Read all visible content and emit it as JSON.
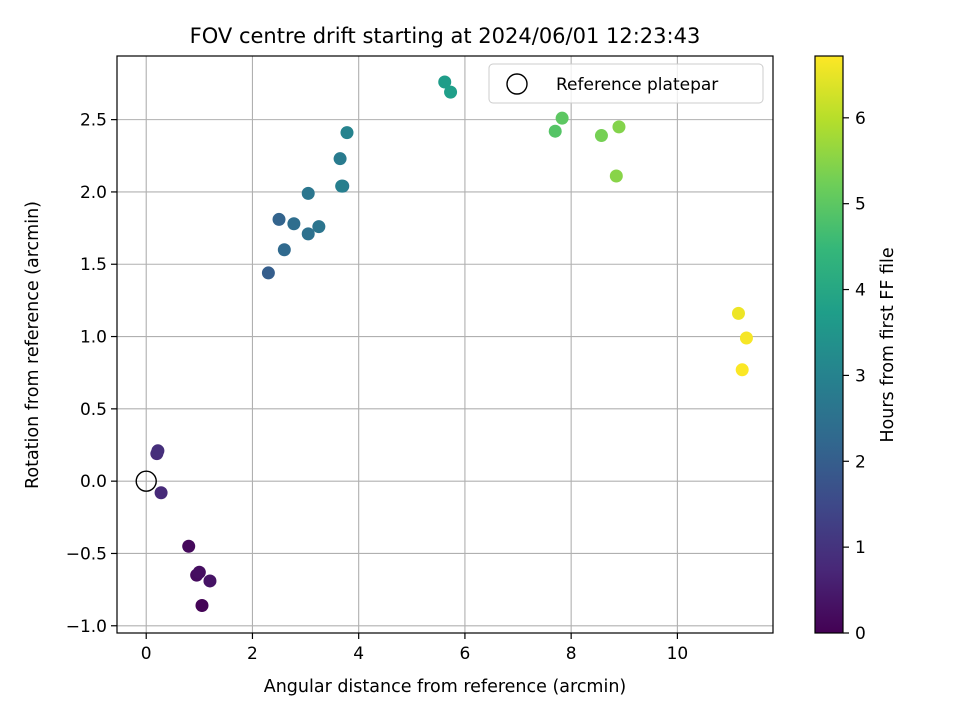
{
  "chart_data": {
    "type": "scatter",
    "title": "FOV centre drift starting at 2024/06/01 12:23:43",
    "xlabel": "Angular distance from reference (arcmin)",
    "ylabel": "Rotation from reference (arcmin)",
    "xlim": [
      -0.55,
      11.8
    ],
    "ylim": [
      -1.05,
      2.94
    ],
    "xticks": [
      0,
      2,
      4,
      6,
      8,
      10
    ],
    "yticks": [
      -1.0,
      -0.5,
      0.0,
      0.5,
      1.0,
      1.5,
      2.0,
      2.5
    ],
    "xtick_labels": [
      "0",
      "2",
      "4",
      "6",
      "8",
      "10"
    ],
    "ytick_labels": [
      "−1.0",
      "−0.5",
      "0.0",
      "0.5",
      "1.0",
      "1.5",
      "2.0",
      "2.5"
    ],
    "grid": true,
    "legend": {
      "entry": "Reference platepar",
      "placement": "top-right"
    },
    "reference_point": {
      "x": 0.0,
      "y": 0.0
    },
    "colorbar": {
      "label": "Hours from first FF file",
      "range": [
        0,
        6.72
      ],
      "ticks": [
        0,
        1,
        2,
        3,
        4,
        5,
        6
      ],
      "tick_labels": [
        "0",
        "1",
        "2",
        "3",
        "4",
        "5",
        "6"
      ],
      "colormap": "viridis",
      "colors": [
        "#440154",
        "#482878",
        "#3e4989",
        "#31688e",
        "#26828e",
        "#1f9e89",
        "#35b779",
        "#6ece58",
        "#b5de2b",
        "#fde725"
      ]
    },
    "series": [
      {
        "points": [
          {
            "x": 1.05,
            "y": -0.86,
            "t": 0.05
          },
          {
            "x": 0.8,
            "y": -0.45,
            "t": 0.15
          },
          {
            "x": 0.95,
            "y": -0.65,
            "t": 0.2
          },
          {
            "x": 1.0,
            "y": -0.63,
            "t": 0.25
          },
          {
            "x": 1.2,
            "y": -0.69,
            "t": 0.35
          },
          {
            "x": 0.28,
            "y": -0.08,
            "t": 0.8
          },
          {
            "x": 0.2,
            "y": 0.19,
            "t": 0.85
          },
          {
            "x": 0.22,
            "y": 0.21,
            "t": 0.9
          },
          {
            "x": 2.3,
            "y": 1.44,
            "t": 2.0
          },
          {
            "x": 2.5,
            "y": 1.81,
            "t": 2.15
          },
          {
            "x": 2.6,
            "y": 1.6,
            "t": 2.3
          },
          {
            "x": 2.78,
            "y": 1.78,
            "t": 2.4
          },
          {
            "x": 3.05,
            "y": 1.71,
            "t": 2.5
          },
          {
            "x": 3.25,
            "y": 1.76,
            "t": 2.6
          },
          {
            "x": 3.05,
            "y": 1.99,
            "t": 2.65
          },
          {
            "x": 3.7,
            "y": 2.04,
            "t": 2.7
          },
          {
            "x": 3.65,
            "y": 2.23,
            "t": 2.8
          },
          {
            "x": 3.68,
            "y": 2.04,
            "t": 2.9
          },
          {
            "x": 3.78,
            "y": 2.41,
            "t": 3.0
          },
          {
            "x": 5.62,
            "y": 2.76,
            "t": 3.7
          },
          {
            "x": 5.73,
            "y": 2.69,
            "t": 3.75
          },
          {
            "x": 7.7,
            "y": 2.42,
            "t": 4.9
          },
          {
            "x": 7.83,
            "y": 2.51,
            "t": 5.0
          },
          {
            "x": 8.57,
            "y": 2.39,
            "t": 5.3
          },
          {
            "x": 8.9,
            "y": 2.45,
            "t": 5.45
          },
          {
            "x": 8.85,
            "y": 2.11,
            "t": 5.5
          },
          {
            "x": 11.15,
            "y": 1.16,
            "t": 6.55
          },
          {
            "x": 11.3,
            "y": 0.99,
            "t": 6.65
          },
          {
            "x": 11.22,
            "y": 0.77,
            "t": 6.7
          }
        ]
      }
    ]
  }
}
